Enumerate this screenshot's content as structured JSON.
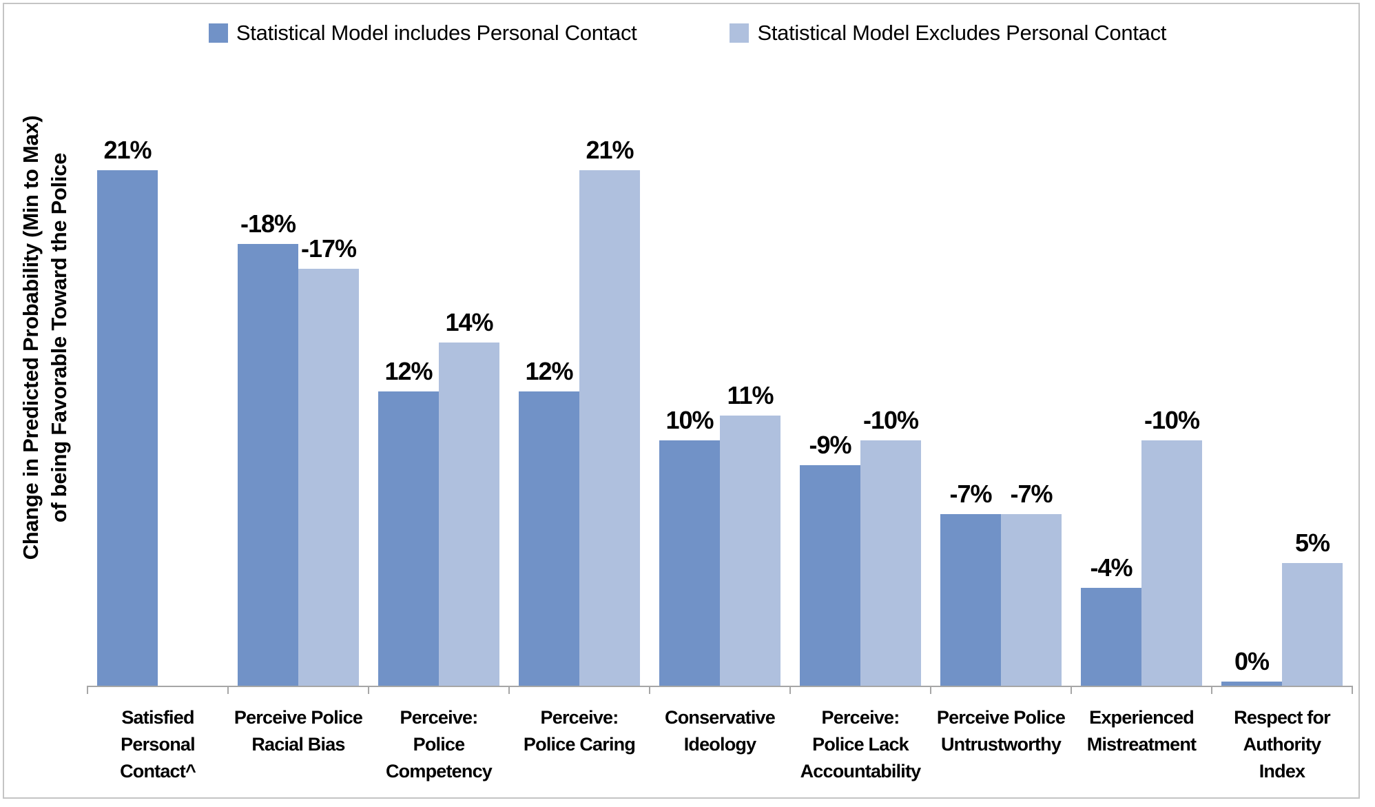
{
  "chart_data": {
    "type": "bar",
    "title": "",
    "ylabel": "Change in Predicted Probability (Min to Max)\nof being Favorable Toward the Police",
    "categories": [
      "Satisfied\nPersonal\nContact^",
      "Perceive Police\nRacial Bias",
      "Perceive:\nPolice\nCompetency",
      "Perceive:\nPolice Caring",
      "Conservative\nIdeology",
      "Perceive:\nPolice Lack\nAccountability",
      "Perceive Police\nUntrustworthy",
      "Experienced\nMistreatment",
      "Respect for\nAuthority\nIndex"
    ],
    "series": [
      {
        "name": "Statistical Model includes Personal Contact",
        "color": "#7192C7",
        "values": [
          21,
          -18,
          12,
          12,
          10,
          -9,
          -7,
          -4,
          0
        ],
        "labels": [
          "21%",
          "-18%",
          "12%",
          "12%",
          "10%",
          "-9%",
          "-7%",
          "-4%",
          "0%"
        ]
      },
      {
        "name": "Statistical Model Excludes Personal Contact",
        "color": "#AFC0DE",
        "values": [
          null,
          -17,
          14,
          21,
          11,
          -10,
          -7,
          -10,
          5
        ],
        "labels": [
          null,
          "-17%",
          "14%",
          "21%",
          "11%",
          "-10%",
          "-7%",
          "-10%",
          "5%"
        ]
      }
    ],
    "bar_rendering": "bars show absolute magnitude; labels show signed percent",
    "axis": {
      "ylim": [
        0,
        24
      ],
      "gridlines": false,
      "baseline_color": "#A6A6A6",
      "legend_position": "top-center"
    }
  },
  "frame_color": "#C4C4C4"
}
